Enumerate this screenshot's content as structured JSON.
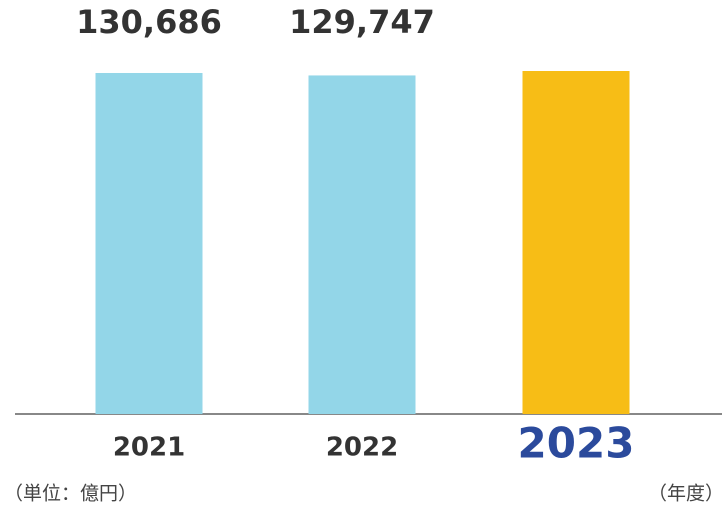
{
  "chart_data": {
    "type": "bar",
    "categories": [
      "2021",
      "2022",
      "2023"
    ],
    "values": [
      130686,
      129747,
      131450
    ],
    "value_labels": [
      "130,686",
      "129,747",
      null
    ],
    "colors": [
      "#93d6e8",
      "#93d6e8",
      "#f7bd16"
    ],
    "highlight_index": 2,
    "highlight_color": "#2b4a9c",
    "unit_label": "（単位：億円）",
    "x_label": "（年度）"
  }
}
